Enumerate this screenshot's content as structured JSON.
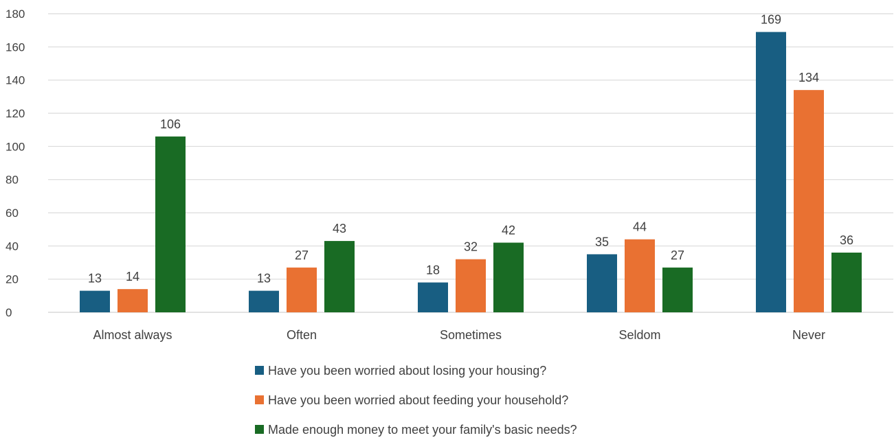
{
  "chart_data": {
    "type": "bar",
    "title": "",
    "xlabel": "",
    "ylabel": "",
    "ylim": [
      0,
      180
    ],
    "yticks": [
      0,
      20,
      40,
      60,
      80,
      100,
      120,
      140,
      160,
      180
    ],
    "grid": true,
    "legend_position": "bottom",
    "categories": [
      "Almost always",
      "Often",
      "Sometimes",
      "Seldom",
      "Never"
    ],
    "series": [
      {
        "name": "Have you been worried about losing your housing?",
        "color": "#185e82",
        "values": [
          13,
          13,
          18,
          35,
          169
        ]
      },
      {
        "name": "Have you been worried about feeding your household?",
        "color": "#e97132",
        "values": [
          14,
          27,
          32,
          44,
          134
        ]
      },
      {
        "name": "Made enough money to meet your family's basic needs?",
        "color": "#196b24",
        "values": [
          106,
          43,
          42,
          27,
          36
        ]
      }
    ]
  }
}
